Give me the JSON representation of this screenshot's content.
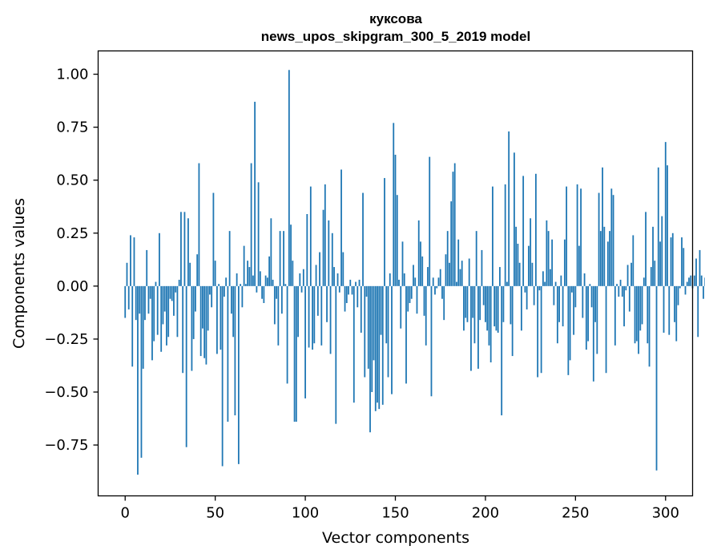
{
  "chart_data": {
    "type": "bar",
    "title_line1": "куксова",
    "title_line2": "news_upos_skipgram_300_5_2019 model",
    "xlabel": "Vector components",
    "ylabel": "Components values",
    "xlim": [
      -15,
      315
    ],
    "ylim": [
      -0.99,
      1.11
    ],
    "xticks": [
      0,
      50,
      100,
      150,
      200,
      250,
      300
    ],
    "yticks": [
      -0.75,
      -0.5,
      -0.25,
      0.0,
      0.25,
      0.5,
      0.75,
      1.0
    ],
    "ytick_labels": [
      "−0.75",
      "−0.50",
      "−0.25",
      "0.00",
      "0.25",
      "0.50",
      "0.75",
      "1.00"
    ],
    "bar_color": "#1f77b4",
    "values": [
      -0.15,
      0.11,
      -0.11,
      0.24,
      -0.38,
      0.23,
      -0.16,
      -0.89,
      -0.13,
      -0.81,
      -0.39,
      -0.16,
      0.17,
      -0.13,
      -0.06,
      -0.35,
      -0.26,
      0.02,
      -0.23,
      0.25,
      -0.31,
      -0.18,
      -0.12,
      -0.28,
      -0.24,
      -0.06,
      -0.07,
      -0.14,
      -0.03,
      -0.24,
      0.03,
      0.35,
      -0.41,
      0.35,
      -0.76,
      0.32,
      0.11,
      -0.4,
      -0.25,
      -0.12,
      0.15,
      0.58,
      -0.33,
      -0.2,
      -0.34,
      -0.37,
      -0.21,
      -0.04,
      -0.1,
      0.44,
      0.12,
      -0.32,
      0.01,
      -0.3,
      -0.85,
      -0.05,
      0.04,
      -0.64,
      0.26,
      -0.13,
      -0.24,
      -0.61,
      0.06,
      -0.84,
      0.01,
      -0.1,
      0.19,
      0.01,
      0.12,
      0.09,
      0.58,
      0.05,
      0.87,
      -0.03,
      0.49,
      0.07,
      -0.06,
      -0.08,
      0.05,
      0.04,
      0.14,
      0.32,
      0.03,
      -0.18,
      -0.06,
      -0.28,
      0.26,
      -0.13,
      0.26,
      0.01,
      -0.46,
      1.02,
      0.29,
      0.12,
      -0.64,
      -0.64,
      -0.24,
      0.06,
      -0.03,
      0.08,
      -0.53,
      0.34,
      -0.29,
      0.47,
      -0.3,
      -0.27,
      0.1,
      -0.14,
      0.16,
      -0.28,
      0.36,
      0.48,
      -0.17,
      0.31,
      -0.32,
      0.25,
      0.09,
      -0.65,
      0.06,
      -0.03,
      0.55,
      0.16,
      -0.12,
      -0.08,
      -0.04,
      0.03,
      -0.04,
      -0.55,
      0.02,
      -0.1,
      0.03,
      -0.22,
      0.44,
      -0.43,
      -0.05,
      -0.39,
      -0.69,
      -0.5,
      -0.35,
      -0.59,
      -0.55,
      -0.58,
      -0.23,
      -0.56,
      0.51,
      -0.27,
      -0.43,
      0.06,
      -0.51,
      0.77,
      0.62,
      0.43,
      0.03,
      -0.2,
      0.21,
      0.06,
      -0.46,
      -0.12,
      -0.08,
      -0.06,
      0.1,
      0.04,
      -0.13,
      0.31,
      0.21,
      0.14,
      -0.14,
      -0.28,
      0.09,
      0.61,
      -0.52,
      0.04,
      -0.04,
      -0.01,
      0.04,
      0.08,
      -0.06,
      -0.16,
      0.15,
      0.26,
      0.11,
      0.4,
      0.54,
      0.58,
      0.02,
      0.22,
      0.08,
      0.12,
      -0.21,
      -0.15,
      -0.17,
      0.13,
      -0.4,
      -0.15,
      -0.27,
      0.26,
      -0.39,
      -0.16,
      0.17,
      -0.09,
      -0.17,
      -0.21,
      -0.28,
      -0.36,
      0.47,
      -0.19,
      -0.21,
      -0.22,
      0.09,
      -0.61,
      -0.17,
      0.48,
      0.02,
      0.73,
      -0.18,
      -0.33,
      0.63,
      0.28,
      0.2,
      0.11,
      -0.21,
      0.52,
      -0.03,
      -0.11,
      0.19,
      0.32,
      0.11,
      -0.09,
      0.53,
      -0.43,
      -0.02,
      -0.41,
      0.07,
      0.02,
      0.31,
      0.26,
      0.08,
      0.22,
      -0.09,
      0.02,
      -0.27,
      -0.17,
      0.05,
      -0.19,
      0.22,
      0.47,
      -0.42,
      -0.35,
      -0.03,
      -0.23,
      -0.1,
      0.48,
      0.19,
      0.46,
      -0.15,
      0.06,
      -0.3,
      -0.26,
      0.01,
      -0.1,
      -0.45,
      -0.17,
      -0.32,
      0.44,
      0.26,
      0.56,
      0.28,
      -0.41,
      0.21,
      0.26,
      0.46,
      0.43,
      -0.28,
      0.01,
      -0.05,
      0.03,
      -0.05,
      -0.19,
      -0.02,
      0.1,
      -0.12,
      0.11,
      0.24,
      -0.27,
      -0.26,
      -0.32,
      -0.21,
      -0.18,
      0.04,
      0.35,
      -0.27,
      -0.38,
      0.09,
      0.28,
      0.12,
      -0.87,
      0.56,
      0.21,
      0.33,
      -0.22,
      0.68,
      0.57,
      -0.23,
      0.23,
      0.25,
      -0.17,
      -0.26,
      -0.09,
      -0.01,
      0.23,
      0.18,
      -0.04,
      0.02,
      0.04,
      0.05,
      -0.01,
      0.05,
      0.13,
      -0.24,
      0.17,
      0.05,
      -0.06,
      0.04,
      0.06,
      -0.07,
      0.05
    ]
  }
}
